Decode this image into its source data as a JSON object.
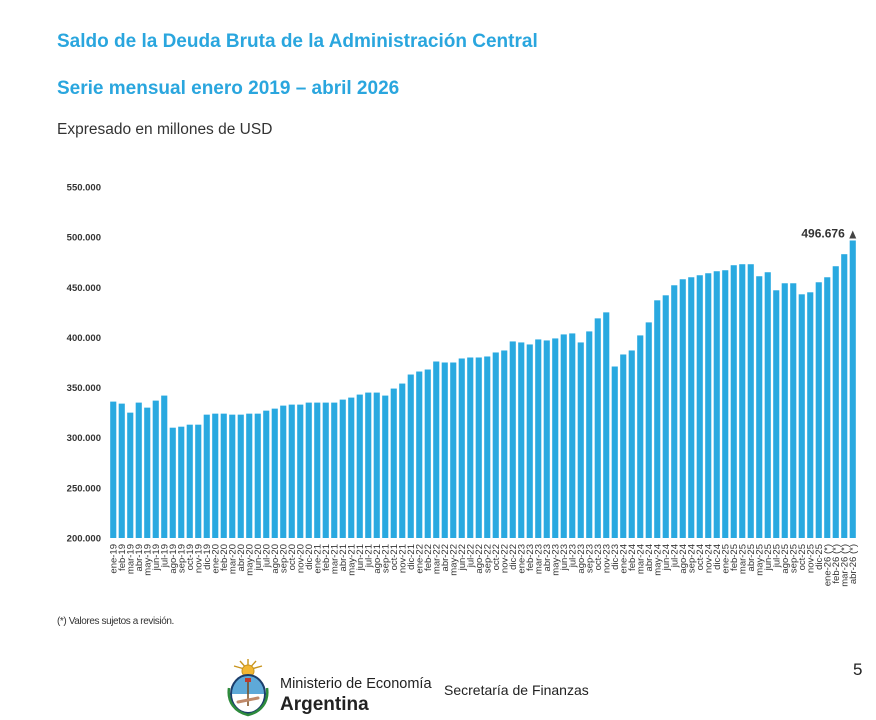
{
  "header": {
    "title": "Saldo de la Deuda Bruta de la Administración Central",
    "subtitle": "Serie mensual enero 2019 – abril 2026",
    "units": "Expresado en millones de USD"
  },
  "footer": {
    "footnote": "(*) Valores sujetos a revisión.",
    "page_number": "5",
    "ministry": "Ministerio de Economía",
    "country": "Argentina",
    "secretariat": "Secretaría de Finanzas"
  },
  "colors": {
    "title": "#2aa6de",
    "bar": "#29a9e0",
    "arrow": "#444444"
  },
  "chart_data": {
    "type": "bar",
    "ylim": [
      200000,
      550000
    ],
    "yticks": [
      200000,
      250000,
      300000,
      350000,
      400000,
      450000,
      500000,
      550000
    ],
    "ytick_labels": [
      "200.000",
      "250.000",
      "300.000",
      "350.000",
      "400.000",
      "450.000",
      "500.000",
      "550.000"
    ],
    "grid": false,
    "categories": [
      "ene-19",
      "feb-19",
      "mar-19",
      "abr-19",
      "may-19",
      "jun-19",
      "jul-19",
      "ago-19",
      "sep-19",
      "oct-19",
      "nov-19",
      "dic-19",
      "ene-20",
      "feb-20",
      "mar-20",
      "abr-20",
      "may-20",
      "jun-20",
      "jul-20",
      "ago-20",
      "sep-20",
      "oct-20",
      "nov-20",
      "dic-20",
      "ene-21",
      "feb-21",
      "mar-21",
      "abr-21",
      "may-21",
      "jun-21",
      "jul-21",
      "ago-21",
      "sep-21",
      "oct-21",
      "nov-21",
      "dic-21",
      "ene-22",
      "feb-22",
      "mar-22",
      "abr-22",
      "may-22",
      "jun-22",
      "jul-22",
      "ago-22",
      "sep-22",
      "oct-22",
      "nov-22",
      "dic-22",
      "ene-23",
      "feb-23",
      "mar-23",
      "abr-23",
      "may-23",
      "jun-23",
      "jul-23",
      "ago-23",
      "sep-23",
      "oct-23",
      "nov-23",
      "dic-23",
      "ene-24",
      "feb-24",
      "mar-24",
      "abr-24",
      "may-24",
      "jun-24",
      "jul-24",
      "ago-24",
      "sep-24",
      "oct-24",
      "nov-24",
      "dic-24",
      "ene-25",
      "feb-25",
      "mar-25",
      "abr-25",
      "may-25",
      "jun-25",
      "jul-25",
      "ago-25",
      "sep-25",
      "oct-25",
      "nov-25",
      "dic-25",
      "ene-26 (*)",
      "feb-26 (*)",
      "mar-26 (*)",
      "abr-26 (*)"
    ],
    "values": [
      336000,
      334000,
      325000,
      335000,
      330000,
      337000,
      342000,
      310000,
      311000,
      313000,
      313000,
      323000,
      324000,
      324000,
      323000,
      323000,
      324000,
      324000,
      327000,
      329000,
      332000,
      333000,
      333000,
      335000,
      335000,
      335000,
      335000,
      338000,
      340000,
      343000,
      345000,
      345000,
      342000,
      349000,
      354000,
      363000,
      366000,
      368000,
      376000,
      375000,
      375000,
      379000,
      380000,
      380000,
      381000,
      385000,
      387000,
      396000,
      395000,
      393000,
      398000,
      397000,
      399000,
      403000,
      404000,
      395000,
      406000,
      419000,
      425000,
      371000,
      383000,
      387000,
      402000,
      415000,
      437000,
      442000,
      452000,
      458000,
      460000,
      462000,
      464000,
      466000,
      467000,
      472000,
      473000,
      473000,
      461000,
      465000,
      447000,
      454000,
      454000,
      443000,
      445000,
      455000,
      460000,
      471000,
      483000,
      496676
    ],
    "annotation": {
      "label": "496.676",
      "category": "abr-26 (*)"
    }
  }
}
